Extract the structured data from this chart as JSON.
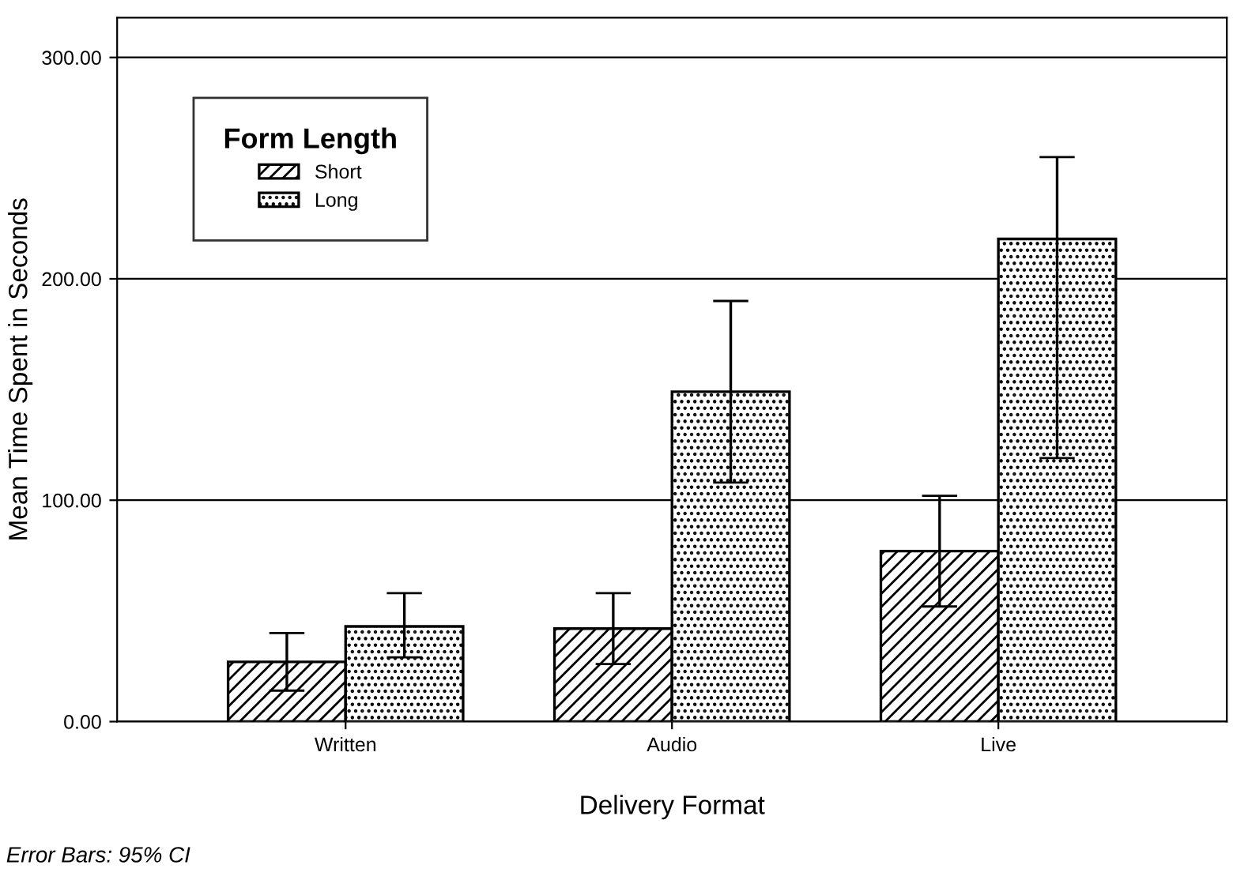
{
  "chart_data": {
    "type": "bar",
    "xlabel": "Delivery Format",
    "ylabel": "Mean Time Spent in Seconds",
    "categories": [
      "Written",
      "Audio",
      "Live"
    ],
    "series": [
      {
        "name": "Short",
        "color": "#000000",
        "values": [
          27,
          42,
          77
        ],
        "errors": [
          [
            14,
            40
          ],
          [
            26,
            58
          ],
          [
            52,
            102
          ]
        ]
      },
      {
        "name": "Long",
        "color": "#000000",
        "values": [
          43,
          149,
          218
        ],
        "errors": [
          [
            29,
            58
          ],
          [
            108,
            190
          ],
          [
            119,
            255
          ]
        ]
      }
    ],
    "legend_title": "Form Length",
    "legend": "top left",
    "ylim": [
      0,
      318
    ],
    "yticks": [
      {
        "value": 0,
        "label": "0.00"
      },
      {
        "value": 100,
        "label": "100.00"
      },
      {
        "value": 200,
        "label": "200.00"
      },
      {
        "value": 300,
        "label": "300.00"
      }
    ],
    "grid": "y",
    "annotations": [
      "Error Bars: 95% CI"
    ]
  }
}
